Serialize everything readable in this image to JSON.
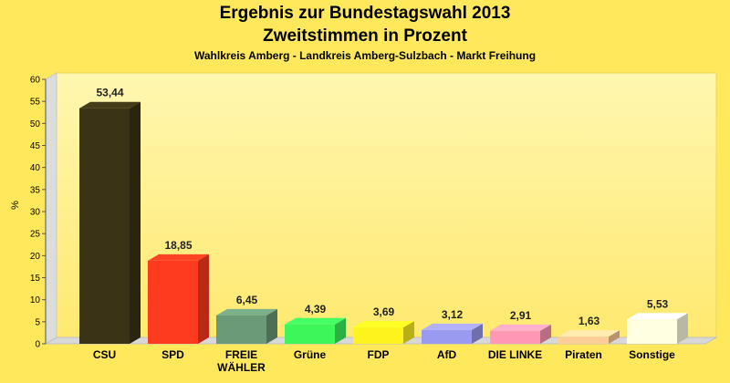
{
  "chart_data": {
    "type": "bar",
    "title": "Ergebnis zur Bundestagswahl 2013",
    "subtitle": "Zweitstimmen in Prozent",
    "subtitle2": "Wahlkreis Amberg - Landkreis Amberg-Sulzbach - Markt Freihung",
    "xlabel": "",
    "ylabel": "%",
    "ylim": [
      0,
      60
    ],
    "yticks": [
      0,
      5,
      10,
      15,
      20,
      25,
      30,
      35,
      40,
      45,
      50,
      55,
      60
    ],
    "grid": false,
    "legend": "none",
    "categories": [
      "CSU",
      "SPD",
      "FREIE WÄHLER",
      "Grüne",
      "FDP",
      "AfD",
      "DIE LINKE",
      "Piraten",
      "Sonstige"
    ],
    "values": [
      53.44,
      18.85,
      6.45,
      4.39,
      3.69,
      3.12,
      2.91,
      1.63,
      5.53
    ],
    "value_labels": [
      "53,44",
      "18,85",
      "6,45",
      "4,39",
      "3,69",
      "3,12",
      "2,91",
      "1,63",
      "5,53"
    ],
    "colors": [
      "#3b3315",
      "#ff3b1f",
      "#6b9a78",
      "#3cf65a",
      "#fdf41e",
      "#9a9af0",
      "#ff98b4",
      "#ffce98",
      "#ffffe2"
    ]
  }
}
